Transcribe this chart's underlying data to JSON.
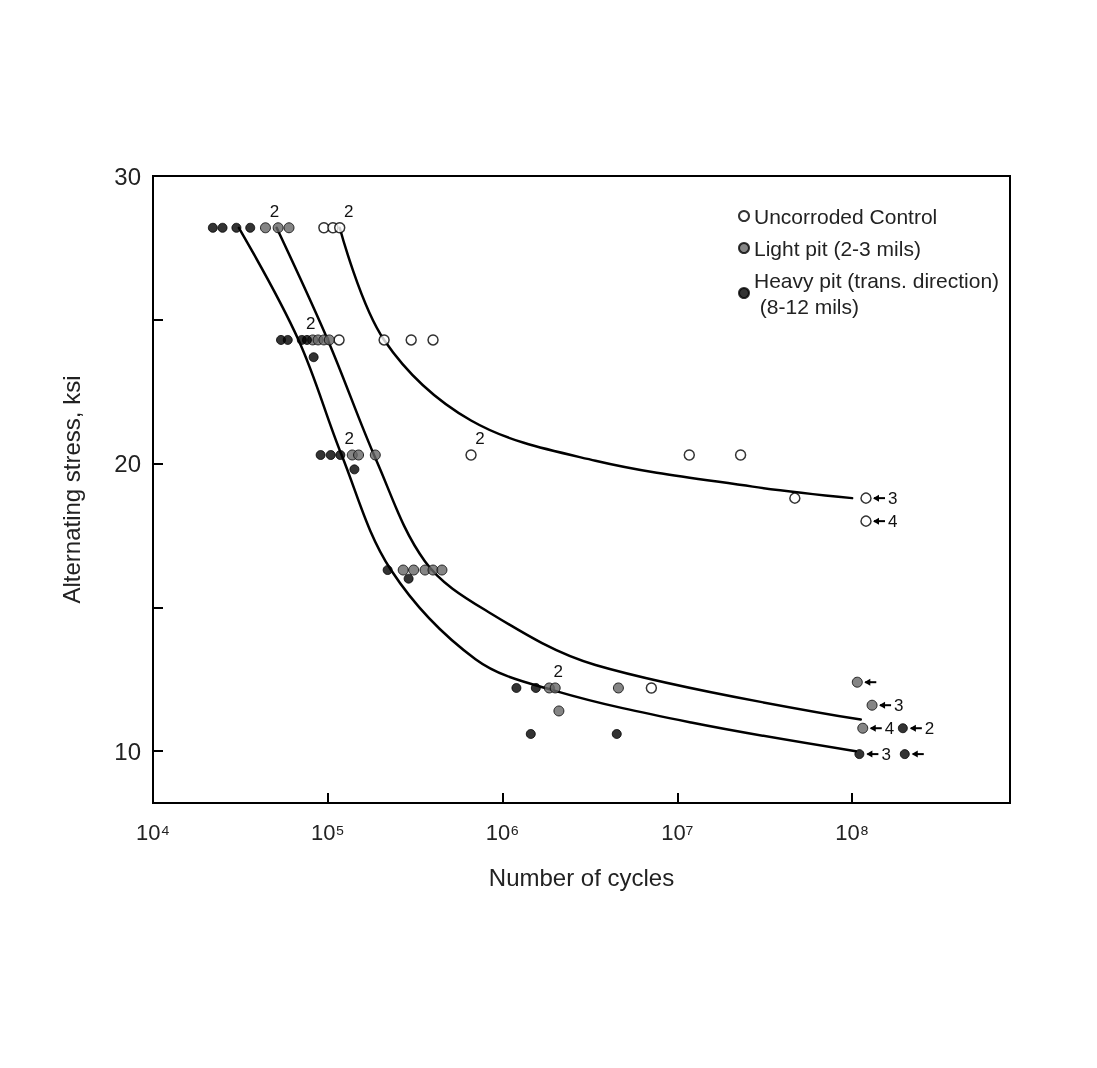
{
  "chart_data": {
    "type": "scatter",
    "xlabel": "Number of cycles",
    "ylabel": "Alternating stress, ksi",
    "log": "x",
    "grid": false,
    "legend": "top right",
    "marker": "circle",
    "xlim": [
      10000,
      800000000
    ],
    "xticks": [
      {
        "value": 10000,
        "label": "10⁴"
      },
      {
        "value": 100000,
        "label": "10⁵"
      },
      {
        "value": 1000000,
        "label": "10⁶"
      },
      {
        "value": 10000000,
        "label": "10⁷"
      },
      {
        "value": 100000000,
        "label": "10⁸"
      }
    ],
    "ylim": [
      8.2,
      30
    ],
    "yticks": [
      10,
      {
        "value": 15,
        "label": null
      },
      20,
      {
        "value": 25,
        "label": null
      },
      30
    ],
    "series": [
      {
        "name": "Uncorroded Control",
        "color": "#000000",
        "x": [
          95000,
          107000,
          117000,
          116000,
          210000,
          300000,
          400000,
          660000,
          11700000,
          23000000,
          47000000,
          120000000,
          120000000,
          7100000
        ],
        "values": [
          28.2,
          28.2,
          28.2,
          24.3,
          24.3,
          24.3,
          24.3,
          20.3,
          20.3,
          20.3,
          18.8,
          18.8,
          18.0,
          12.2
        ]
      },
      {
        "name": "Light pit (2-3 mils)",
        "color": "#666666",
        "x": [
          44000,
          52000,
          60000,
          82000,
          88000,
          95000,
          102000,
          138000,
          150000,
          187000,
          270000,
          310000,
          360000,
          400000,
          450000,
          1850000,
          2000000,
          4600000,
          2100000,
          107000000,
          130000000,
          115000000
        ],
        "values": [
          28.2,
          28.2,
          28.2,
          24.3,
          24.3,
          24.3,
          24.3,
          20.3,
          20.3,
          20.3,
          16.3,
          16.3,
          16.3,
          16.3,
          16.3,
          12.2,
          12.2,
          12.2,
          11.4,
          12.4,
          11.6,
          10.8
        ]
      },
      {
        "name": "Heavy pit (trans. direction) (8-12 mils)",
        "color": "#000000",
        "x": [
          22000,
          25000,
          30000,
          36000,
          54000,
          59000,
          71000,
          76000,
          83000,
          91000,
          104000,
          118000,
          142000,
          220000,
          290000,
          1200000,
          1550000,
          1450000,
          4500000,
          195000000,
          110000000,
          200000000
        ],
        "values": [
          28.2,
          28.2,
          28.2,
          28.2,
          24.3,
          24.3,
          24.3,
          24.3,
          23.7,
          20.3,
          20.3,
          20.3,
          19.8,
          16.3,
          16.0,
          12.2,
          12.2,
          10.6,
          10.6,
          10.8,
          9.9,
          9.9
        ]
      },
      {
        "type": "line",
        "color": "#000000",
        "marker": "none",
        "x": [
          117000,
          210000,
          660000,
          3400000,
          27000000,
          100000000
        ],
        "values": [
          28.2,
          24.3,
          21.5,
          20.1,
          19.2,
          18.8
        ]
      },
      {
        "type": "line",
        "color": "#000000",
        "marker": "none",
        "x": [
          51000,
          100000,
          190000,
          360000,
          800000,
          3400000,
          112000000
        ],
        "values": [
          28.2,
          24.3,
          20.1,
          16.6,
          14.9,
          13.0,
          11.1
        ]
      },
      {
        "type": "line",
        "color": "#000000",
        "marker": "none",
        "x": [
          31000,
          68000,
          120000,
          230000,
          700000,
          2000000,
          12000000,
          105000000
        ],
        "values": [
          28.2,
          24.3,
          20.3,
          16.3,
          13.2,
          12.1,
          11.0,
          10.0
        ]
      }
    ],
    "annotations": [
      {
        "text": "2",
        "x": 117000,
        "y": 28.2
      },
      {
        "text": "2",
        "x": 44000,
        "y": 28.2
      },
      {
        "text": "2",
        "x": 71000,
        "y": 24.3
      },
      {
        "text": "2",
        "x": 118000,
        "y": 20.3
      },
      {
        "text": "2",
        "x": 660000,
        "y": 20.3
      },
      {
        "text": "2",
        "x": 1850000,
        "y": 12.2
      },
      {
        "text": "3",
        "x": 120000000,
        "y": 18.8
      },
      {
        "text": "4",
        "x": 120000000,
        "y": 18.0
      },
      {
        "text": "3",
        "x": 130000000,
        "y": 11.6
      },
      {
        "text": "4",
        "x": 115000000,
        "y": 10.8
      },
      {
        "text": "2",
        "x": 195000000,
        "y": 10.8
      },
      {
        "text": "3",
        "x": 110000000,
        "y": 9.9
      }
    ]
  }
}
